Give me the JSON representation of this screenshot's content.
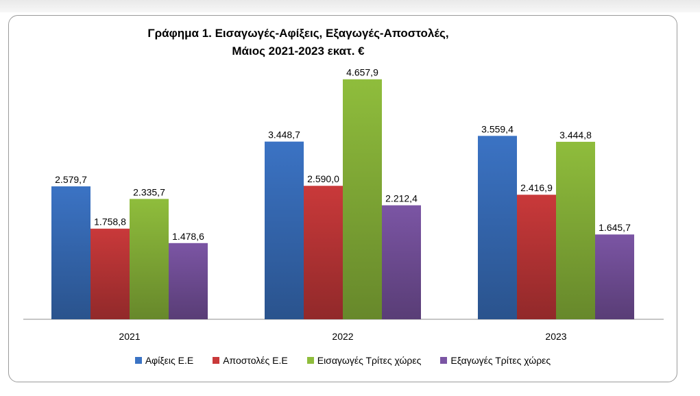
{
  "chart_data": {
    "type": "bar",
    "title_line1": "Γράφημα 1. Εισαγωγές-Αφίξεις, Εξαγωγές-Αποστολές,",
    "title_line2": "Μάιος 2021-2023 εκατ. €",
    "categories": [
      "2021",
      "2022",
      "2023"
    ],
    "series": [
      {
        "name": "Αφίξεις Ε.Ε",
        "values": [
          2579.7,
          3448.7,
          3559.4
        ],
        "labels": [
          "2.579,7",
          "3.448,7",
          "3.559,4"
        ],
        "color": "#3b73c4"
      },
      {
        "name": "Αποστολές  Ε.Ε",
        "values": [
          1758.8,
          2590.0,
          2416.9
        ],
        "labels": [
          "1.758,8",
          "2.590,0",
          "2.416,9"
        ],
        "color": "#c9393a"
      },
      {
        "name": "Εισαγωγές Τρίτες χώρες",
        "values": [
          2335.7,
          4657.9,
          3444.8
        ],
        "labels": [
          "2.335,7",
          "4.657,9",
          "3.444,8"
        ],
        "color": "#8fbd3c"
      },
      {
        "name": "Εξαγωγές Τρίτες χώρες",
        "values": [
          1478.6,
          2212.4,
          1645.7
        ],
        "labels": [
          "1.478,6",
          "2.212,4",
          "1.645,7"
        ],
        "color": "#7b55a4"
      }
    ],
    "ylim": [
      0,
      5000
    ],
    "grid": false,
    "legend_position": "bottom"
  }
}
